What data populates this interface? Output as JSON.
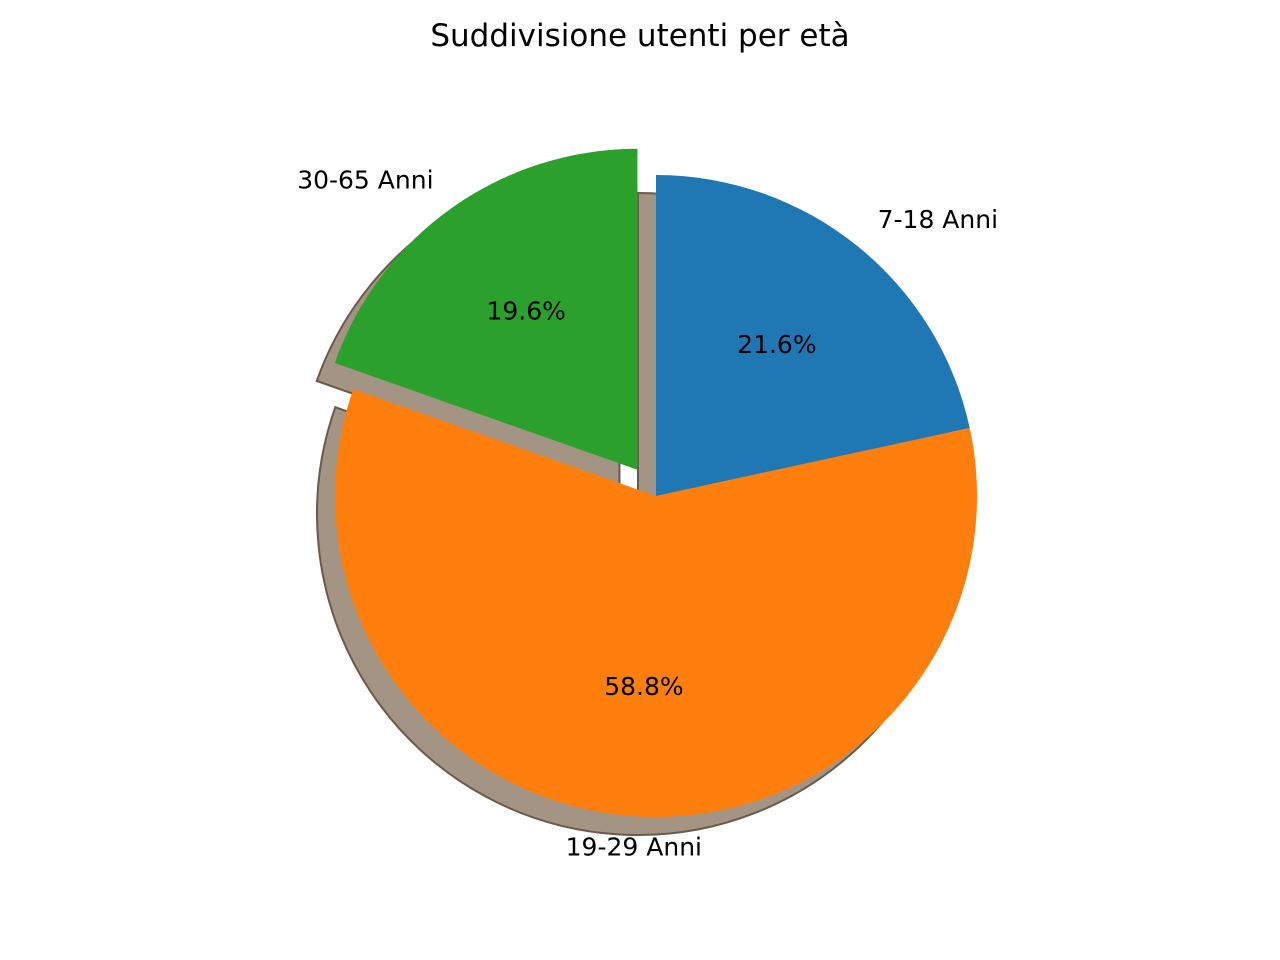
{
  "chart_data": {
    "type": "pie",
    "title": "Suddivisione utenti per età",
    "slices": [
      {
        "label": "7-18 Anni",
        "value": 21.6,
        "pct_label": "21.6%",
        "color": "#1f77b4",
        "exploded": false
      },
      {
        "label": "19-29 Anni",
        "value": 58.8,
        "pct_label": "58.8%",
        "color": "#ff7f0e",
        "exploded": false
      },
      {
        "label": "30-65 Anni",
        "value": 19.6,
        "pct_label": "19.6%",
        "color": "#2ca02c",
        "exploded": true
      }
    ],
    "start_angle_deg": 90,
    "direction": "clockwise",
    "shadow": true,
    "legend": "none"
  }
}
